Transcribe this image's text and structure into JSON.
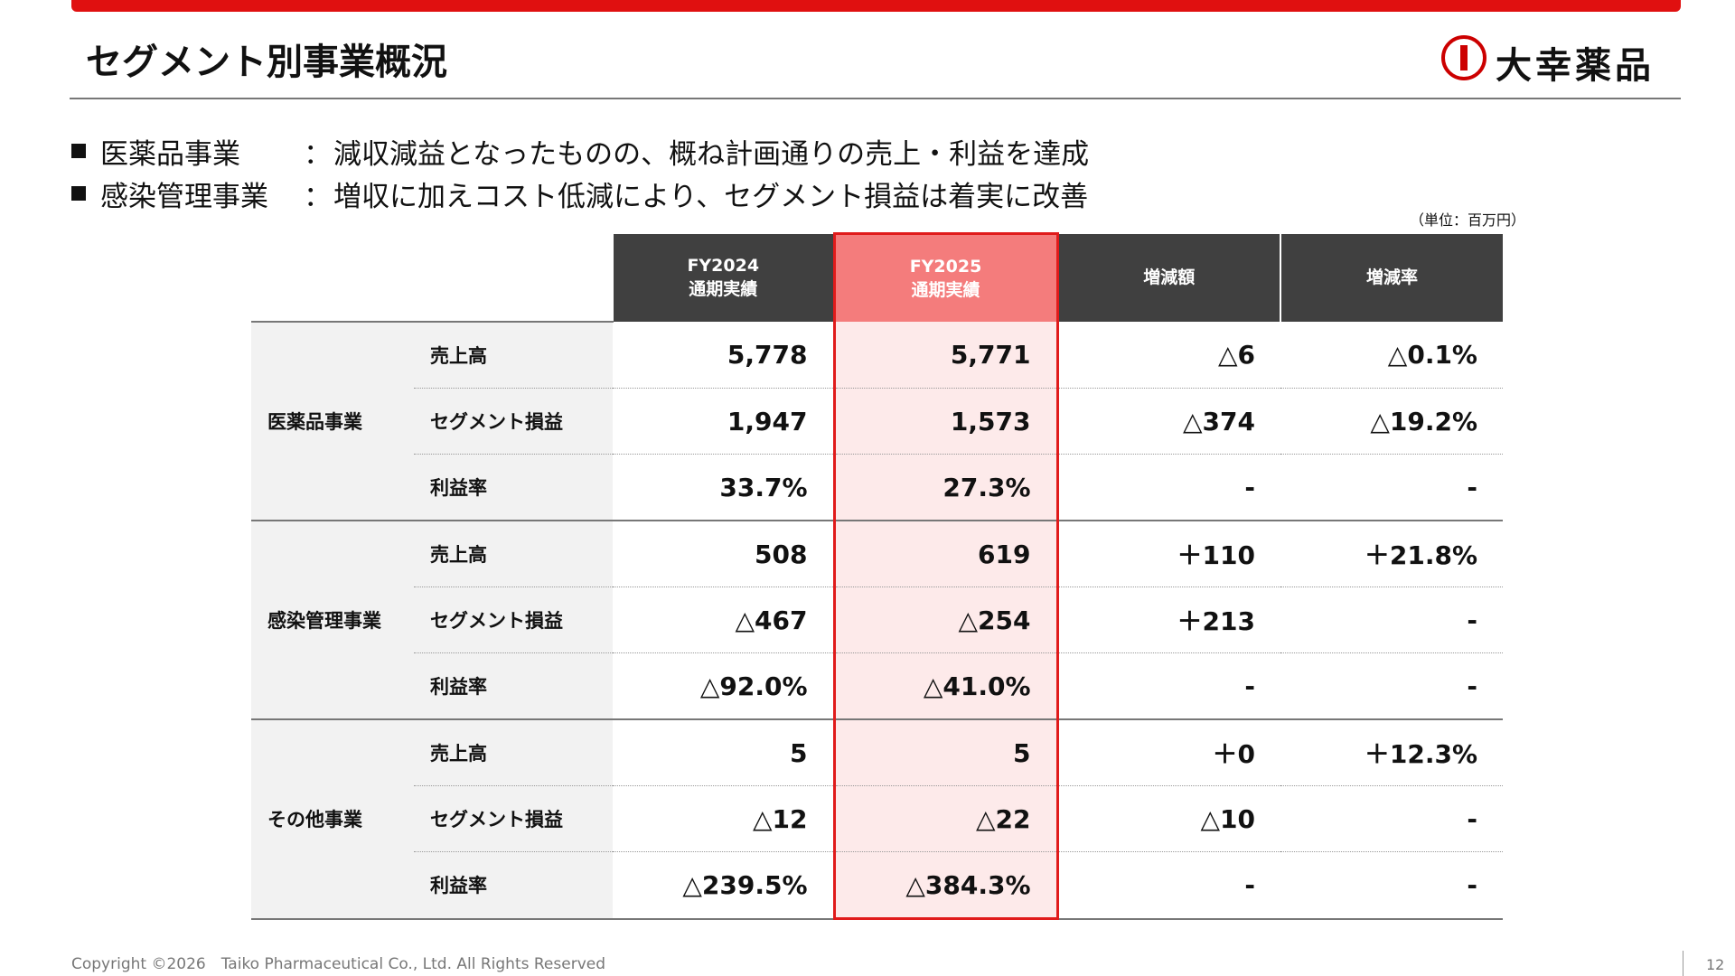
{
  "header": {
    "title": "セグメント別事業概況",
    "logo": "大幸薬品"
  },
  "bullets": [
    {
      "label": "医薬品事業",
      "text": "減収減益となったものの、概ね計画通りの売上・利益を達成"
    },
    {
      "label": "感染管理事業",
      "text": "増収に加えコスト低減により、セグメント損益は着実に改善"
    }
  ],
  "unit_note": "（単位：百万円）",
  "table": {
    "columns": [
      {
        "line1": "FY2024",
        "line2": "通期実績"
      },
      {
        "line1": "FY2025",
        "line2": "通期実績"
      },
      {
        "line1": "増減額"
      },
      {
        "line1": "増減率"
      }
    ],
    "segments": [
      {
        "name": "医薬品事業",
        "rows": [
          {
            "item": "売上高",
            "cells": [
              "5,778",
              "5,771",
              "△6",
              "△0.1%"
            ]
          },
          {
            "item": "セグメント損益",
            "cells": [
              "1,947",
              "1,573",
              "△374",
              "△19.2%"
            ]
          },
          {
            "item": "利益率",
            "cells": [
              "33.7%",
              "27.3%",
              "-",
              "-"
            ]
          }
        ]
      },
      {
        "name": "感染管理事業",
        "rows": [
          {
            "item": "売上高",
            "cells": [
              "508",
              "619",
              "＋110",
              "＋21.8%"
            ]
          },
          {
            "item": "セグメント損益",
            "cells": [
              "△467",
              "△254",
              "＋213",
              "-"
            ]
          },
          {
            "item": "利益率",
            "cells": [
              "△92.0%",
              "△41.0%",
              "-",
              "-"
            ]
          }
        ]
      },
      {
        "name": "その他事業",
        "rows": [
          {
            "item": "売上高",
            "cells": [
              "5",
              "5",
              "＋0",
              "＋12.3%"
            ]
          },
          {
            "item": "セグメント損益",
            "cells": [
              "△12",
              "△22",
              "△10",
              "-"
            ]
          },
          {
            "item": "利益率",
            "cells": [
              "△239.5%",
              "△384.3%",
              "-",
              "-"
            ]
          }
        ]
      }
    ]
  },
  "footer": {
    "copyright": "Copyright ©2026　Taiko Pharmaceutical Co., Ltd. All Rights Reserved",
    "page": "12"
  }
}
